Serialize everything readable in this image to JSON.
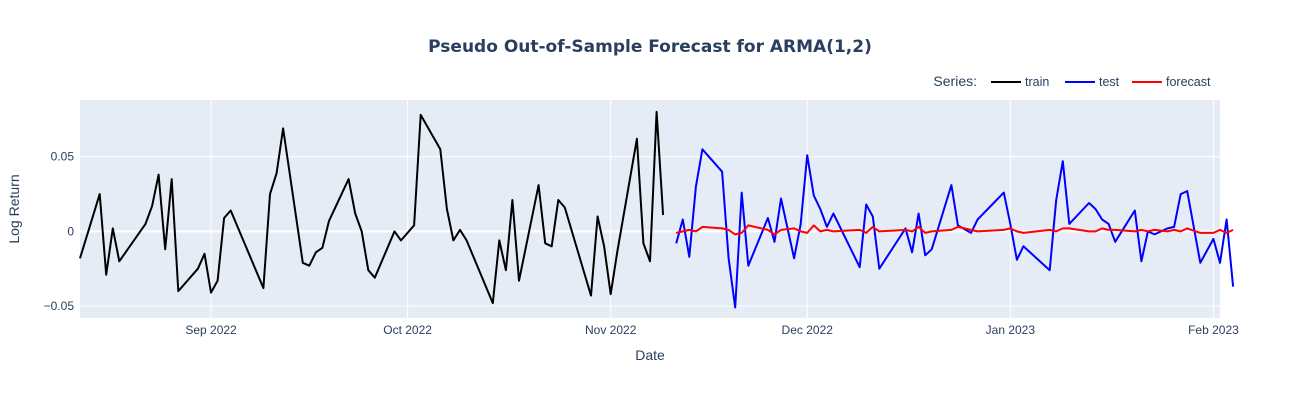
{
  "chart_data": {
    "type": "line",
    "title": "Pseudo Out-of-Sample Forecast for ARMA(1,2)",
    "xlabel": "Date",
    "ylabel": "Log Return",
    "xlim": [
      "2022-08-12",
      "2023-02-02"
    ],
    "ylim": [
      -0.058,
      0.088
    ],
    "x_ticks": [
      {
        "date": "2022-09-01",
        "label": "Sep 2022"
      },
      {
        "date": "2022-10-01",
        "label": "Oct 2022"
      },
      {
        "date": "2022-11-01",
        "label": "Nov 2022"
      },
      {
        "date": "2022-12-01",
        "label": "Dec 2022"
      },
      {
        "date": "2023-01-01",
        "label": "Jan 2023"
      },
      {
        "date": "2023-02-01",
        "label": "Feb 2023"
      }
    ],
    "y_ticks": [
      {
        "value": 0.05,
        "label": "0.05"
      },
      {
        "value": 0,
        "label": "0"
      },
      {
        "value": -0.05,
        "label": "−0.05"
      }
    ],
    "grid": true,
    "legend": {
      "title": "Series:",
      "position": "top-right",
      "orientation": "horizontal"
    },
    "series": [
      {
        "name": "train",
        "color": "#000000",
        "points": [
          [
            "2022-08-12",
            -0.018
          ],
          [
            "2022-08-15",
            0.025
          ],
          [
            "2022-08-16",
            -0.029
          ],
          [
            "2022-08-17",
            0.002
          ],
          [
            "2022-08-18",
            -0.02
          ],
          [
            "2022-08-22",
            0.005
          ],
          [
            "2022-08-23",
            0.017
          ],
          [
            "2022-08-24",
            0.038
          ],
          [
            "2022-08-25",
            -0.012
          ],
          [
            "2022-08-26",
            0.035
          ],
          [
            "2022-08-27",
            -0.04
          ],
          [
            "2022-08-30",
            -0.025
          ],
          [
            "2022-08-31",
            -0.015
          ],
          [
            "2022-09-01",
            -0.041
          ],
          [
            "2022-09-02",
            -0.033
          ],
          [
            "2022-09-03",
            0.009
          ],
          [
            "2022-09-04",
            0.014
          ],
          [
            "2022-09-09",
            -0.038
          ],
          [
            "2022-09-10",
            0.025
          ],
          [
            "2022-09-11",
            0.039
          ],
          [
            "2022-09-12",
            0.069
          ],
          [
            "2022-09-15",
            -0.021
          ],
          [
            "2022-09-16",
            -0.023
          ],
          [
            "2022-09-17",
            -0.014
          ],
          [
            "2022-09-18",
            -0.011
          ],
          [
            "2022-09-19",
            0.007
          ],
          [
            "2022-09-22",
            0.035
          ],
          [
            "2022-09-23",
            0.012
          ],
          [
            "2022-09-24",
            0.0
          ],
          [
            "2022-09-25",
            -0.026
          ],
          [
            "2022-09-26",
            -0.031
          ],
          [
            "2022-09-29",
            0.0
          ],
          [
            "2022-09-30",
            -0.006
          ],
          [
            "2022-10-02",
            0.004
          ],
          [
            "2022-10-03",
            0.078
          ],
          [
            "2022-10-06",
            0.055
          ],
          [
            "2022-10-07",
            0.015
          ],
          [
            "2022-10-08",
            -0.006
          ],
          [
            "2022-10-09",
            0.001
          ],
          [
            "2022-10-10",
            -0.006
          ],
          [
            "2022-10-14",
            -0.048
          ],
          [
            "2022-10-15",
            -0.006
          ],
          [
            "2022-10-16",
            -0.026
          ],
          [
            "2022-10-17",
            0.021
          ],
          [
            "2022-10-18",
            -0.033
          ],
          [
            "2022-10-21",
            0.031
          ],
          [
            "2022-10-22",
            -0.008
          ],
          [
            "2022-10-23",
            -0.01
          ],
          [
            "2022-10-24",
            0.021
          ],
          [
            "2022-10-25",
            0.016
          ],
          [
            "2022-10-29",
            -0.043
          ],
          [
            "2022-10-30",
            0.01
          ],
          [
            "2022-10-31",
            -0.01
          ],
          [
            "2022-11-01",
            -0.042
          ],
          [
            "2022-11-02",
            -0.014
          ],
          [
            "2022-11-05",
            0.062
          ],
          [
            "2022-11-06",
            -0.008
          ],
          [
            "2022-11-07",
            -0.02
          ],
          [
            "2022-11-08",
            0.08
          ],
          [
            "2022-11-09",
            0.011
          ]
        ]
      },
      {
        "name": "test",
        "color": "#0000ff",
        "points": [
          [
            "2022-11-11",
            -0.008
          ],
          [
            "2022-11-12",
            0.008
          ],
          [
            "2022-11-13",
            -0.017
          ],
          [
            "2022-11-14",
            0.03
          ],
          [
            "2022-11-15",
            0.055
          ],
          [
            "2022-11-18",
            0.04
          ],
          [
            "2022-11-19",
            -0.018
          ],
          [
            "2022-11-20",
            -0.051
          ],
          [
            "2022-11-21",
            0.026
          ],
          [
            "2022-11-22",
            -0.023
          ],
          [
            "2022-11-25",
            0.009
          ],
          [
            "2022-11-26",
            -0.007
          ],
          [
            "2022-11-27",
            0.022
          ],
          [
            "2022-11-29",
            -0.018
          ],
          [
            "2022-11-30",
            0.005
          ],
          [
            "2022-12-01",
            0.051
          ],
          [
            "2022-12-02",
            0.024
          ],
          [
            "2022-12-03",
            0.015
          ],
          [
            "2022-12-04",
            0.003
          ],
          [
            "2022-12-05",
            0.012
          ],
          [
            "2022-12-09",
            -0.024
          ],
          [
            "2022-12-10",
            0.018
          ],
          [
            "2022-12-11",
            0.01
          ],
          [
            "2022-12-12",
            -0.025
          ],
          [
            "2022-12-16",
            0.002
          ],
          [
            "2022-12-17",
            -0.014
          ],
          [
            "2022-12-18",
            0.012
          ],
          [
            "2022-12-19",
            -0.016
          ],
          [
            "2022-12-20",
            -0.012
          ],
          [
            "2022-12-23",
            0.031
          ],
          [
            "2022-12-24",
            0.004
          ],
          [
            "2022-12-26",
            -0.001
          ],
          [
            "2022-12-27",
            0.008
          ],
          [
            "2022-12-31",
            0.026
          ],
          [
            "2023-01-01",
            0.005
          ],
          [
            "2023-01-02",
            -0.019
          ],
          [
            "2023-01-03",
            -0.01
          ],
          [
            "2023-01-07",
            -0.026
          ],
          [
            "2023-01-08",
            0.021
          ],
          [
            "2023-01-09",
            0.047
          ],
          [
            "2023-01-10",
            0.005
          ],
          [
            "2023-01-13",
            0.019
          ],
          [
            "2023-01-14",
            0.015
          ],
          [
            "2023-01-15",
            0.008
          ],
          [
            "2023-01-16",
            0.005
          ],
          [
            "2023-01-17",
            -0.007
          ],
          [
            "2023-01-20",
            0.014
          ],
          [
            "2023-01-21",
            -0.02
          ],
          [
            "2023-01-22",
            0.0
          ],
          [
            "2023-01-23",
            -0.002
          ],
          [
            "2023-01-25",
            0.002
          ],
          [
            "2023-01-26",
            0.003
          ],
          [
            "2023-01-27",
            0.025
          ],
          [
            "2023-01-28",
            0.027
          ],
          [
            "2023-01-30",
            -0.021
          ],
          [
            "2023-02-01",
            -0.005
          ],
          [
            "2023-02-02",
            -0.021
          ],
          [
            "2023-02-03",
            0.008
          ],
          [
            "2023-02-04",
            -0.037
          ]
        ]
      },
      {
        "name": "forecast",
        "color": "#ff0000",
        "points": [
          [
            "2022-11-11",
            -0.001
          ],
          [
            "2022-11-12",
            0.0
          ],
          [
            "2022-11-13",
            0.001
          ],
          [
            "2022-11-14",
            0.0
          ],
          [
            "2022-11-15",
            0.003
          ],
          [
            "2022-11-18",
            0.002
          ],
          [
            "2022-11-19",
            0.001
          ],
          [
            "2022-11-20",
            -0.002
          ],
          [
            "2022-11-21",
            -0.001
          ],
          [
            "2022-11-22",
            0.004
          ],
          [
            "2022-11-25",
            0.001
          ],
          [
            "2022-11-26",
            -0.002
          ],
          [
            "2022-11-27",
            0.001
          ],
          [
            "2022-11-29",
            0.002
          ],
          [
            "2022-11-30",
            0.0
          ],
          [
            "2022-12-01",
            -0.001
          ],
          [
            "2022-12-02",
            0.004
          ],
          [
            "2022-12-03",
            0.0
          ],
          [
            "2022-12-04",
            0.001
          ],
          [
            "2022-12-05",
            0.0
          ],
          [
            "2022-12-09",
            0.001
          ],
          [
            "2022-12-10",
            -0.001
          ],
          [
            "2022-12-11",
            0.003
          ],
          [
            "2022-12-12",
            0.0
          ],
          [
            "2022-12-16",
            0.001
          ],
          [
            "2022-12-17",
            0.0
          ],
          [
            "2022-12-18",
            0.003
          ],
          [
            "2022-12-19",
            -0.001
          ],
          [
            "2022-12-20",
            0.0
          ],
          [
            "2022-12-23",
            0.001
          ],
          [
            "2022-12-24",
            0.003
          ],
          [
            "2022-12-26",
            0.001
          ],
          [
            "2022-12-27",
            0.0
          ],
          [
            "2022-12-31",
            0.001
          ],
          [
            "2023-01-01",
            0.002
          ],
          [
            "2023-01-02",
            0.0
          ],
          [
            "2023-01-03",
            -0.001
          ],
          [
            "2023-01-07",
            0.001
          ],
          [
            "2023-01-08",
            0.0
          ],
          [
            "2023-01-09",
            0.002
          ],
          [
            "2023-01-10",
            0.002
          ],
          [
            "2023-01-13",
            0.0
          ],
          [
            "2023-01-14",
            0.0
          ],
          [
            "2023-01-15",
            0.002
          ],
          [
            "2023-01-16",
            0.001
          ],
          [
            "2023-01-17",
            0.001
          ],
          [
            "2023-01-20",
            0.0
          ],
          [
            "2023-01-21",
            0.001
          ],
          [
            "2023-01-22",
            0.0
          ],
          [
            "2023-01-23",
            0.001
          ],
          [
            "2023-01-25",
            0.0
          ],
          [
            "2023-01-26",
            0.001
          ],
          [
            "2023-01-27",
            0.0
          ],
          [
            "2023-01-28",
            0.002
          ],
          [
            "2023-01-30",
            -0.001
          ],
          [
            "2023-02-01",
            -0.001
          ],
          [
            "2023-02-02",
            0.001
          ],
          [
            "2023-02-03",
            -0.001
          ],
          [
            "2023-02-04",
            0.001
          ]
        ]
      }
    ]
  }
}
